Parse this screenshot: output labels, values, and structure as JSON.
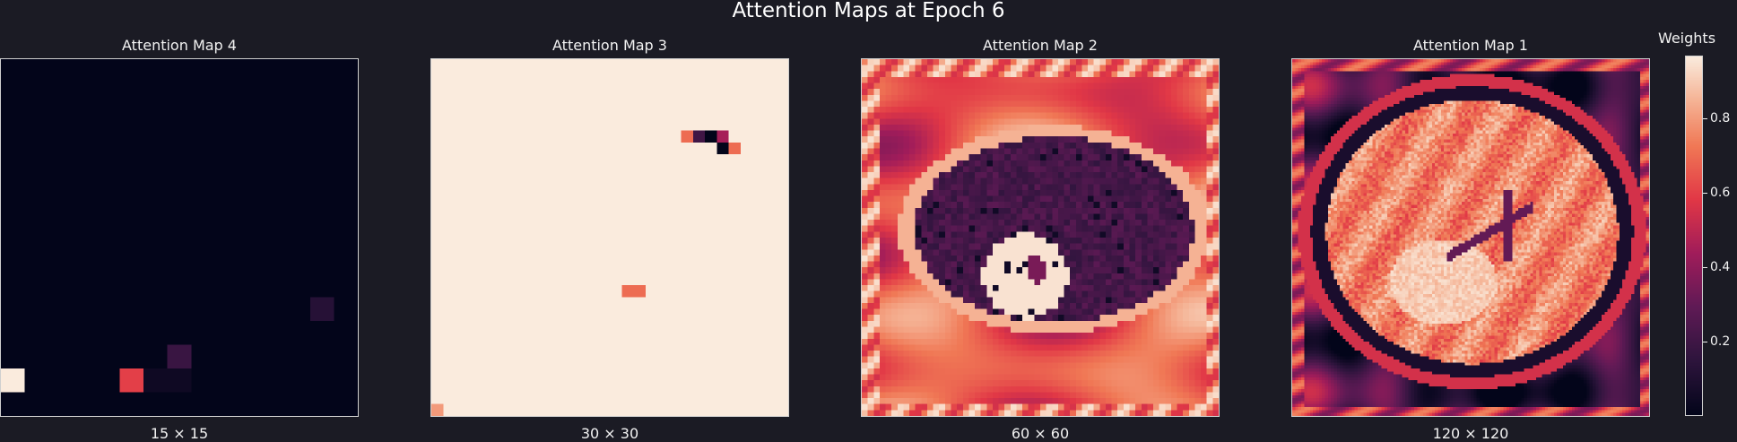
{
  "figure": {
    "title": "Attention Maps at Epoch 6"
  },
  "chart_data": [
    {
      "type": "heatmap",
      "title": "Attention Map 4",
      "xlabel": "15 × 15",
      "grid": [
        15,
        15
      ],
      "background": 0.0,
      "cells": [
        {
          "row": 13,
          "col": 0,
          "value": 0.97
        },
        {
          "row": 13,
          "col": 5,
          "value": 0.6
        },
        {
          "row": 12,
          "col": 7,
          "value": 0.18
        },
        {
          "row": 13,
          "col": 6,
          "value": 0.04
        },
        {
          "row": 13,
          "col": 7,
          "value": 0.04
        },
        {
          "row": 10,
          "col": 13,
          "value": 0.12
        }
      ]
    },
    {
      "type": "heatmap",
      "title": "Attention Map 3",
      "xlabel": "30 × 30",
      "grid": [
        30,
        30
      ],
      "background": 0.97,
      "cells": [
        {
          "row": 6,
          "col": 21,
          "value": 0.7
        },
        {
          "row": 6,
          "col": 22,
          "value": 0.2
        },
        {
          "row": 6,
          "col": 23,
          "value": 0.0
        },
        {
          "row": 6,
          "col": 24,
          "value": 0.45
        },
        {
          "row": 7,
          "col": 24,
          "value": 0.0
        },
        {
          "row": 7,
          "col": 25,
          "value": 0.7
        },
        {
          "row": 19,
          "col": 16,
          "value": 0.7
        },
        {
          "row": 19,
          "col": 17,
          "value": 0.7
        },
        {
          "row": 29,
          "col": 0,
          "value": 0.8
        }
      ]
    },
    {
      "type": "heatmap",
      "title": "Attention Map 2",
      "xlabel": "60 × 60",
      "grid": [
        60,
        60
      ],
      "description_values": {
        "border_frame": 0.75,
        "background": 0.65,
        "brain_interior": 0.22,
        "bright_region": 0.95,
        "dark_pockets": 0.05
      }
    },
    {
      "type": "heatmap",
      "title": "Attention Map 1",
      "xlabel": "120 × 120",
      "grid": [
        120,
        120
      ],
      "description_values": {
        "outer_background": 0.2,
        "skull_ring": 0.08,
        "brain_tissue": 0.75,
        "bright_region": 0.95,
        "ventricle": 0.3
      }
    }
  ],
  "colorbar": {
    "label": "Weights",
    "colormap": "rocket",
    "range": [
      0.0,
      0.97
    ],
    "ticks": [
      {
        "value": 0.2,
        "label": "0.2"
      },
      {
        "value": 0.4,
        "label": "0.4"
      },
      {
        "value": 0.6,
        "label": "0.6"
      },
      {
        "value": 0.8,
        "label": "0.8"
      }
    ]
  }
}
